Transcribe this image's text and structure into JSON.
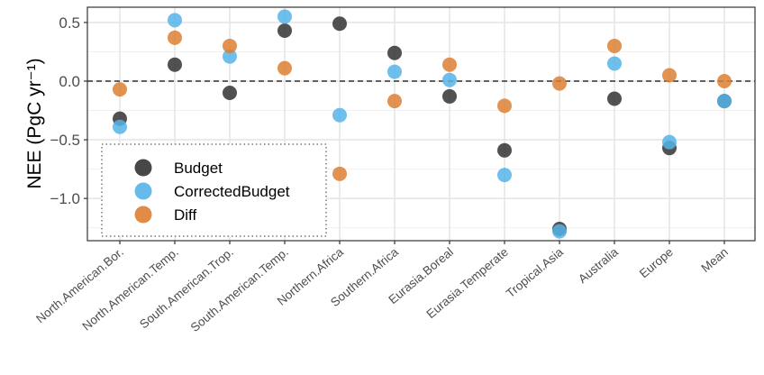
{
  "chart_data": {
    "type": "scatter",
    "title": "",
    "xlabel": "",
    "ylabel": "NEE (PgC yr⁻¹)",
    "ylim": [
      -1.36,
      0.63
    ],
    "yticks": [
      0.5,
      0.0,
      -0.5,
      -1.0
    ],
    "ytick_labels": [
      "0.5",
      "0.0",
      "−0.5",
      "−1.0"
    ],
    "grid": true,
    "reference_line": {
      "y": 0,
      "style": "dashed"
    },
    "legend_position": "bottom-left",
    "categories": [
      "North.American.Bor.",
      "North.American.Temp.",
      "South.American.Trop.",
      "South.American.Temp.",
      "Northern.Africa",
      "Southern.Africa",
      "Eurasia.Boreal",
      "Eurasia.Temperate",
      "Tropical.Asia",
      "Australia",
      "Europe",
      "Mean"
    ],
    "series": [
      {
        "name": "Budget",
        "color": "#333333",
        "values": [
          -0.32,
          0.14,
          -0.1,
          0.43,
          0.49,
          0.24,
          -0.13,
          -0.59,
          -1.26,
          -0.15,
          -0.57,
          -0.17
        ]
      },
      {
        "name": "CorrectedBudget",
        "color": "#56B4E9",
        "values": [
          -0.39,
          0.52,
          0.21,
          0.55,
          -0.29,
          0.08,
          0.01,
          -0.8,
          -1.28,
          0.15,
          -0.52,
          -0.17
        ]
      },
      {
        "name": "Diff",
        "color": "#DD7F32",
        "values": [
          -0.07,
          0.37,
          0.3,
          0.11,
          -0.79,
          -0.17,
          0.14,
          -0.21,
          -0.02,
          0.3,
          0.05,
          0.0
        ]
      }
    ]
  }
}
